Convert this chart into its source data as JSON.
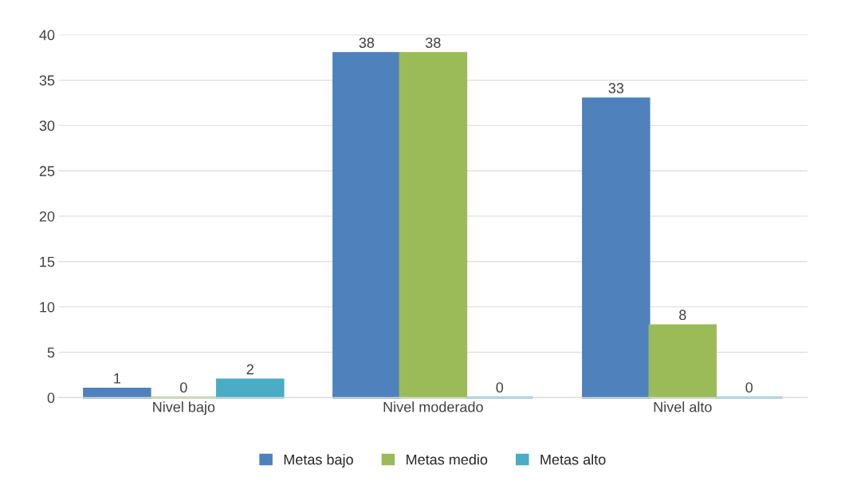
{
  "chart_data": {
    "type": "bar",
    "categories": [
      "Nivel bajo",
      "Nivel moderado",
      "Nivel alto"
    ],
    "series": [
      {
        "name": "Metas bajo",
        "color": "#4f81bd",
        "values": [
          1,
          38,
          33
        ]
      },
      {
        "name": "Metas medio",
        "color": "#9bbb59",
        "values": [
          0,
          38,
          8
        ]
      },
      {
        "name": "Metas alto",
        "color": "#4bacc6",
        "values": [
          2,
          0,
          0
        ]
      }
    ],
    "ylim": [
      0,
      40
    ],
    "yticks": [
      0,
      5,
      10,
      15,
      20,
      25,
      30,
      35,
      40
    ],
    "grid": "y",
    "legend": "bottom",
    "data_labels": true
  }
}
